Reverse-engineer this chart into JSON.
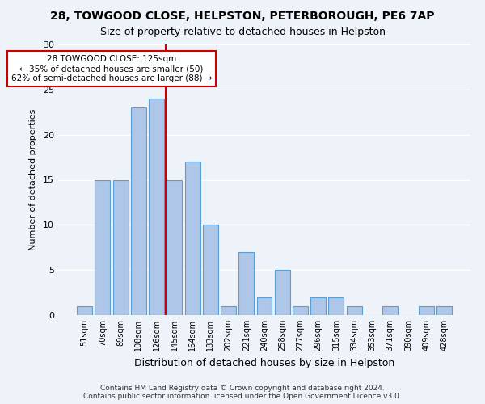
{
  "title_line1": "28, TOWGOOD CLOSE, HELPSTON, PETERBOROUGH, PE6 7AP",
  "title_line2": "Size of property relative to detached houses in Helpston",
  "xlabel": "Distribution of detached houses by size in Helpston",
  "ylabel": "Number of detached properties",
  "footnote": "Contains HM Land Registry data © Crown copyright and database right 2024.\nContains public sector information licensed under the Open Government Licence v3.0.",
  "bar_labels": [
    "51sqm",
    "70sqm",
    "89sqm",
    "108sqm",
    "126sqm",
    "145sqm",
    "164sqm",
    "183sqm",
    "202sqm",
    "221sqm",
    "240sqm",
    "258sqm",
    "277sqm",
    "296sqm",
    "315sqm",
    "334sqm",
    "353sqm",
    "371sqm",
    "390sqm",
    "409sqm",
    "428sqm"
  ],
  "bar_values": [
    1,
    15,
    15,
    23,
    24,
    15,
    17,
    10,
    1,
    7,
    2,
    5,
    1,
    2,
    2,
    1,
    0,
    1,
    0,
    1,
    1
  ],
  "bar_color": "#aec6e8",
  "bar_edge_color": "#5a9fd4",
  "background_color": "#eef2f9",
  "grid_color": "#ffffff",
  "property_line_x": 4.5,
  "annotation_text": "28 TOWGOOD CLOSE: 125sqm\n← 35% of detached houses are smaller (50)\n62% of semi-detached houses are larger (88) →",
  "annotation_box_color": "#ffffff",
  "annotation_box_edge_color": "#cc0000",
  "property_line_color": "#cc0000",
  "ylim": [
    0,
    30
  ],
  "yticks": [
    0,
    5,
    10,
    15,
    20,
    25,
    30
  ]
}
